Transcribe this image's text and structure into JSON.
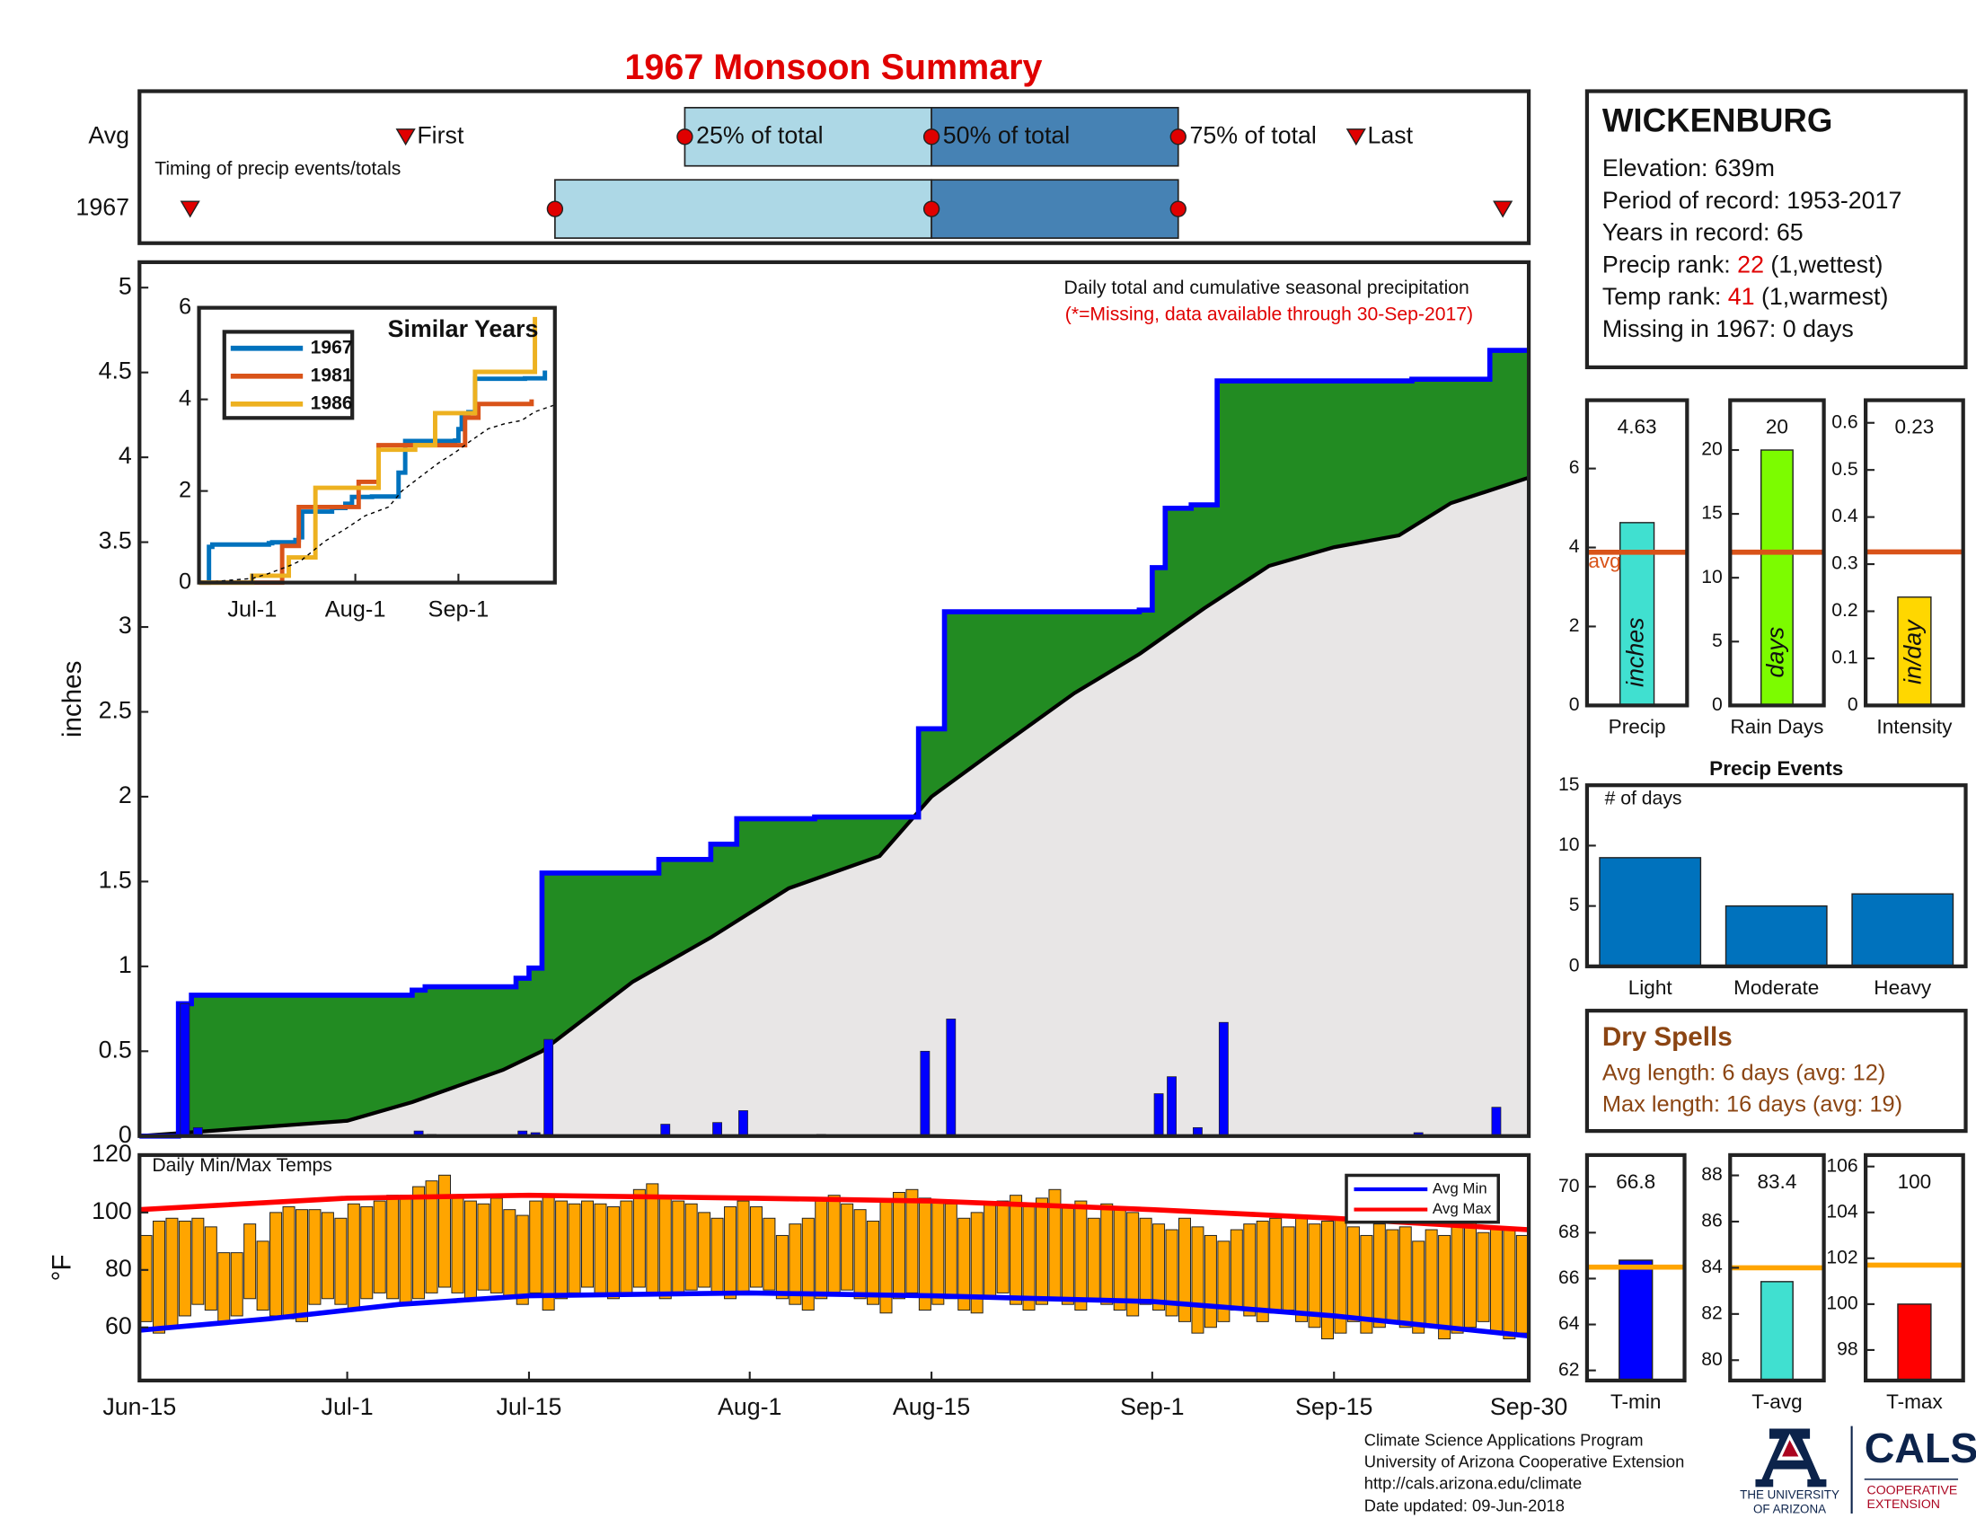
{
  "title": "1967 Monsoon Summary",
  "chart_data": [
    {
      "type": "timing",
      "xlim": [
        0,
        107
      ],
      "series": [
        {
          "name": "Avg",
          "values": [
            20.5,
            42,
            61,
            80,
            93.7
          ]
        },
        {
          "name": "1967",
          "values": [
            3.9,
            32,
            61,
            80,
            105
          ]
        }
      ],
      "point_labels": [
        "First",
        "25% of total",
        "50% of total",
        "75% of total",
        "Last"
      ],
      "annotation": "Timing of precip events/totals",
      "colors": [
        "#add8e6",
        "#4682b4"
      ],
      "marker_color": "#e00000"
    },
    {
      "type": "precip",
      "xlim": [
        0,
        107
      ],
      "ylim": [
        0,
        5.15
      ],
      "yticks": [
        0,
        0.5,
        1,
        1.5,
        2,
        2.5,
        3,
        3.5,
        4,
        4.5,
        5
      ],
      "ylabel": "inches",
      "annotation": "Daily total and cumulative seasonal precipitation",
      "note": "(*=Missing, data available through 30-Sep-2017)",
      "note_color": "#e00000",
      "daily": {
        "color": "#0000ff",
        "x": [
          3,
          4,
          21,
          22,
          29,
          30,
          31,
          40,
          44,
          46,
          52,
          60,
          62,
          78,
          79,
          81,
          83,
          98,
          104
        ],
        "values": [
          0.78,
          0.05,
          0.03,
          0.01,
          0.03,
          0.02,
          0.57,
          0.07,
          0.08,
          0.15,
          0.01,
          0.5,
          0.69,
          0.25,
          0.35,
          0.05,
          0.67,
          0.02,
          0.17
        ]
      },
      "series": [
        {
          "color": "#0000ff",
          "fill": "#228b22",
          "step": true,
          "x": [
            0,
            3,
            4,
            21,
            22,
            29,
            30,
            31,
            40,
            44,
            46,
            52,
            60,
            62,
            77,
            78,
            79,
            81,
            83,
            98,
            104
          ],
          "values": [
            0,
            0.78,
            0.83,
            0.86,
            0.88,
            0.93,
            0.99,
            1.55,
            1.63,
            1.72,
            1.87,
            1.88,
            2.4,
            3.09,
            3.1,
            3.35,
            3.7,
            3.72,
            4.45,
            4.46,
            4.63
          ]
        },
        {
          "color": "#000000",
          "fill": "#e8e6e6",
          "step": false,
          "x": [
            0,
            16,
            21,
            28,
            31,
            38,
            44,
            50,
            57,
            61,
            66,
            72,
            77,
            82,
            87,
            92,
            97,
            101,
            107
          ],
          "values": [
            0,
            0.09,
            0.2,
            0.39,
            0.5,
            0.91,
            1.17,
            1.46,
            1.65,
            2.0,
            2.28,
            2.61,
            2.84,
            3.11,
            3.36,
            3.47,
            3.54,
            3.73,
            3.88
          ]
        }
      ]
    },
    {
      "type": "line",
      "title": "Similar Years",
      "xlim": [
        0,
        107
      ],
      "ylim": [
        0,
        6
      ],
      "yticks": [
        0,
        2,
        4,
        6
      ],
      "xticks": [
        {
          "value": 16,
          "label": "Jul-1"
        },
        {
          "value": 47,
          "label": "Aug-1"
        },
        {
          "value": 78,
          "label": "Sep-1"
        }
      ],
      "legend": "upper left",
      "series": [
        {
          "name": "1967",
          "color": "#0072bd",
          "x": [
            0,
            3,
            4,
            21,
            22,
            29,
            30,
            31,
            40,
            44,
            46,
            52,
            60,
            62,
            77,
            78,
            79,
            81,
            83,
            98,
            104
          ],
          "values": [
            0,
            0.78,
            0.83,
            0.86,
            0.88,
            0.93,
            0.99,
            1.55,
            1.63,
            1.72,
            1.87,
            1.88,
            2.4,
            3.09,
            3.1,
            3.35,
            3.7,
            3.72,
            4.45,
            4.46,
            4.63
          ]
        },
        {
          "name": "1981",
          "color": "#d95319",
          "x": [
            0,
            25,
            30,
            48,
            54,
            80,
            84,
            100
          ],
          "values": [
            0,
            0.8,
            1.65,
            2.2,
            3.0,
            3.6,
            3.9,
            4.0
          ]
        },
        {
          "name": "1986",
          "color": "#edb120",
          "x": [
            0,
            16,
            27,
            35,
            54,
            65,
            71,
            83,
            101
          ],
          "values": [
            0,
            0.15,
            0.55,
            2.07,
            2.9,
            3.0,
            3.7,
            4.6,
            5.8
          ]
        },
        {
          "color": "#000000",
          "style": "dashed",
          "x": [
            0,
            16,
            21,
            28,
            31,
            38,
            44,
            50,
            57,
            61,
            66,
            72,
            77,
            82,
            87,
            92,
            97,
            101,
            107
          ],
          "values": [
            0,
            0.09,
            0.2,
            0.39,
            0.5,
            0.91,
            1.17,
            1.46,
            1.65,
            2.0,
            2.28,
            2.61,
            2.84,
            3.11,
            3.36,
            3.47,
            3.54,
            3.73,
            3.88
          ]
        }
      ]
    },
    {
      "type": "temps",
      "annotation": "Daily Min/Max Temps",
      "ylabel": "°F",
      "xlim": [
        0,
        107
      ],
      "ylim": [
        41.5,
        120
      ],
      "yticks": [
        60,
        80,
        100,
        120
      ],
      "xticks": [
        {
          "value": 0,
          "label": "Jun-15"
        },
        {
          "value": 16,
          "label": "Jul-1"
        },
        {
          "value": 30,
          "label": "Jul-15"
        },
        {
          "value": 47,
          "label": "Aug-1"
        },
        {
          "value": 61,
          "label": "Aug-15"
        },
        {
          "value": 78,
          "label": "Sep-1"
        },
        {
          "value": 92,
          "label": "Sep-15"
        },
        {
          "value": 107,
          "label": "Sep-30"
        }
      ],
      "legend": "upper right",
      "bar_color": "#ffa500",
      "x": [
        0,
        1,
        2,
        3,
        4,
        5,
        6,
        7,
        8,
        9,
        10,
        11,
        12,
        13,
        14,
        15,
        16,
        17,
        18,
        19,
        20,
        21,
        22,
        23,
        24,
        25,
        26,
        27,
        28,
        29,
        30,
        31,
        32,
        33,
        34,
        35,
        36,
        37,
        38,
        39,
        40,
        41,
        42,
        43,
        44,
        45,
        46,
        47,
        48,
        49,
        50,
        51,
        52,
        53,
        54,
        55,
        56,
        57,
        58,
        59,
        60,
        61,
        62,
        63,
        64,
        65,
        66,
        67,
        68,
        69,
        70,
        71,
        72,
        73,
        74,
        75,
        76,
        77,
        78,
        79,
        80,
        81,
        82,
        83,
        84,
        85,
        86,
        87,
        88,
        89,
        90,
        91,
        92,
        93,
        94,
        95,
        96,
        97,
        98,
        99,
        100,
        101,
        102,
        103,
        104,
        105,
        106
      ],
      "daily_max": [
        92,
        97,
        98,
        97,
        98,
        95,
        86,
        86,
        96,
        90,
        100,
        102,
        101,
        101,
        100,
        98,
        103,
        102,
        104,
        106,
        106,
        109,
        111,
        113,
        106,
        104,
        103,
        105,
        101,
        99,
        104,
        106,
        104,
        103,
        104,
        103,
        102,
        104,
        108,
        110,
        106,
        104,
        103,
        100,
        98,
        102,
        104,
        102,
        98,
        92,
        96,
        98,
        104,
        106,
        103,
        101,
        97,
        104,
        107,
        108,
        105,
        104,
        103,
        98,
        100,
        103,
        104,
        106,
        103,
        105,
        108,
        102,
        104,
        98,
        103,
        102,
        100,
        98,
        96,
        94,
        98,
        95,
        92,
        90,
        94,
        96,
        97,
        98,
        95,
        98,
        96,
        97,
        98,
        95,
        92,
        96,
        94,
        95,
        90,
        94,
        92,
        96,
        97,
        93,
        95,
        94,
        92
      ],
      "daily_min": [
        62,
        58,
        60,
        64,
        68,
        66,
        62,
        64,
        70,
        66,
        64,
        63,
        62,
        68,
        70,
        68,
        66,
        70,
        72,
        70,
        68,
        70,
        72,
        74,
        72,
        70,
        73,
        72,
        70,
        68,
        72,
        66,
        70,
        72,
        74,
        72,
        70,
        72,
        74,
        72,
        70,
        72,
        73,
        74,
        72,
        70,
        72,
        74,
        73,
        70,
        68,
        66,
        70,
        72,
        73,
        70,
        68,
        65,
        70,
        72,
        66,
        68,
        70,
        66,
        65,
        70,
        72,
        68,
        66,
        68,
        70,
        68,
        66,
        70,
        68,
        66,
        64,
        68,
        66,
        64,
        62,
        58,
        60,
        62,
        66,
        64,
        62,
        65,
        66,
        62,
        60,
        56,
        58,
        62,
        58,
        60,
        62,
        60,
        58,
        60,
        56,
        58,
        60,
        62,
        58,
        56,
        58
      ],
      "series": [
        {
          "name": "Avg Min",
          "color": "#0000ff",
          "x": [
            0,
            10,
            20,
            30,
            47,
            61,
            78,
            92,
            107
          ],
          "values": [
            59,
            63,
            68,
            71,
            72,
            71,
            69,
            64,
            57
          ]
        },
        {
          "name": "Avg Max",
          "color": "#ff0000",
          "x": [
            0,
            16,
            30,
            47,
            61,
            78,
            92,
            107
          ],
          "values": [
            101,
            105,
            106,
            105,
            104,
            101,
            98,
            94
          ]
        }
      ]
    },
    {
      "type": "stat",
      "xlabel": "Precip",
      "value": 4.63,
      "avg": 3.88,
      "avg_label": "avg",
      "bar_label": "inches",
      "color": "#40e0d0",
      "avg_color": "#d95319",
      "ylim": [
        0,
        7.73
      ],
      "yticks": [
        0,
        2,
        4,
        6
      ]
    },
    {
      "type": "stat",
      "xlabel": "Rain Days",
      "value": 20,
      "avg": 12,
      "bar_label": "days",
      "color": "#7cfc00",
      "avg_color": "#d95319",
      "ylim": [
        0,
        23.9
      ],
      "yticks": [
        0,
        5,
        10,
        15,
        20
      ]
    },
    {
      "type": "stat",
      "xlabel": "Intensity",
      "value": 0.23,
      "avg": 0.326,
      "bar_label": "in/day",
      "color": "#ffd700",
      "avg_color": "#d95319",
      "ylim": [
        0,
        0.648
      ],
      "yticks": [
        0,
        0.1,
        0.2,
        0.3,
        0.4,
        0.5,
        0.6
      ]
    },
    {
      "type": "bar",
      "title": "Precip Events",
      "annotation": "# of days",
      "categories": [
        "Light",
        "Moderate",
        "Heavy"
      ],
      "values": [
        9,
        5,
        6
      ],
      "color": "#0072bd",
      "ylim": [
        0,
        15
      ],
      "yticks": [
        0,
        5,
        10,
        15
      ]
    },
    {
      "type": "stat",
      "xlabel": "T-min",
      "value": 66.8,
      "avg": 66.5,
      "color": "#0000ff",
      "avg_color": "#ffa500",
      "ylim": [
        61.56,
        71.38
      ],
      "yticks": [
        62,
        64,
        66,
        68,
        70
      ]
    },
    {
      "type": "stat",
      "xlabel": "T-avg",
      "value": 83.4,
      "avg": 84,
      "color": "#40e0d0",
      "avg_color": "#ffa500",
      "ylim": [
        79.12,
        88.88
      ],
      "yticks": [
        80,
        82,
        84,
        86,
        88
      ]
    },
    {
      "type": "stat",
      "xlabel": "T-max",
      "value": 100,
      "avg": 101.7,
      "color": "#ff0000",
      "avg_color": "#ffa500",
      "ylim": [
        96.67,
        106.5
      ],
      "yticks": [
        98,
        100,
        102,
        104,
        106
      ]
    }
  ],
  "station": {
    "name": "WICKENBURG",
    "highlight_color": "#e00000",
    "lines": [
      [
        "Elevation: 639m"
      ],
      [
        "Period of record: 1953-2017"
      ],
      [
        "Years in record: 65"
      ],
      [
        "Precip rank: ",
        "22",
        " (1,wettest)"
      ],
      [
        "Temp rank: ",
        "41",
        " (1,warmest)"
      ],
      [
        "Missing in 1967: 0 days"
      ]
    ]
  },
  "dry_spells": {
    "title": "Dry Spells",
    "lines": [
      "Avg length: 6 days (avg: 12)",
      "Max length: 16 days (avg: 19)"
    ]
  },
  "footer": {
    "lines": [
      "Climate Science Applications Program",
      "University of Arizona Cooperative Extension",
      "http://cals.arizona.edu/climate",
      " Date updated: 09-Jun-2018"
    ],
    "ua_logo": [
      "THE UNIVERSITY",
      "OF ARIZONA"
    ],
    "cals_logo": {
      "name": "CALS",
      "sub": [
        "COOPERATIVE",
        "EXTENSION"
      ]
    }
  }
}
